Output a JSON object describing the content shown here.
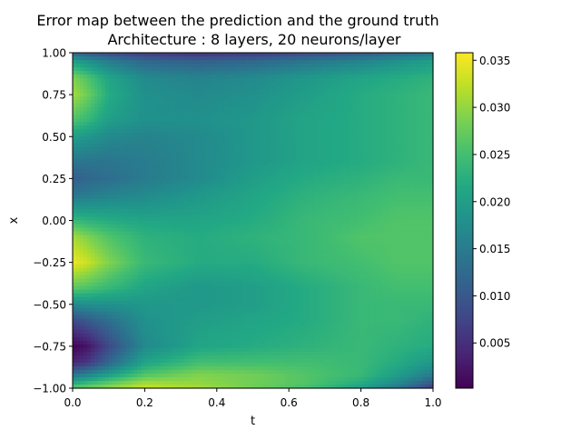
{
  "chart_data": {
    "type": "heatmap",
    "title_line1": "Error map between the prediction and the ground truth",
    "title_line2": "Architecture : 8 layers, 20 neurons/layer",
    "xlabel": "t",
    "ylabel": "x",
    "xlim": [
      0.0,
      1.0
    ],
    "ylim": [
      -1.0,
      1.0
    ],
    "xticks": [
      {
        "value": 0.0,
        "label": "0.0"
      },
      {
        "value": 0.2,
        "label": "0.2"
      },
      {
        "value": 0.4,
        "label": "0.4"
      },
      {
        "value": 0.6,
        "label": "0.6"
      },
      {
        "value": 0.8,
        "label": "0.8"
      },
      {
        "value": 1.0,
        "label": "1.0"
      }
    ],
    "yticks": [
      {
        "value": 1.0,
        "label": "1.00"
      },
      {
        "value": 0.75,
        "label": "0.75"
      },
      {
        "value": 0.5,
        "label": "0.50"
      },
      {
        "value": 0.25,
        "label": "0.25"
      },
      {
        "value": 0.0,
        "label": "0.00"
      },
      {
        "value": -0.25,
        "label": "−0.25"
      },
      {
        "value": -0.5,
        "label": "−0.50"
      },
      {
        "value": -0.75,
        "label": "−0.75"
      },
      {
        "value": -1.0,
        "label": "−1.00"
      }
    ],
    "colormap": "viridis",
    "colorbar": {
      "min": 0.0002,
      "max": 0.0358,
      "ticks": [
        {
          "value": 0.005,
          "label": "0.005"
        },
        {
          "value": 0.01,
          "label": "0.010"
        },
        {
          "value": 0.015,
          "label": "0.015"
        },
        {
          "value": 0.02,
          "label": "0.020"
        },
        {
          "value": 0.025,
          "label": "0.025"
        },
        {
          "value": 0.03,
          "label": "0.030"
        },
        {
          "value": 0.035,
          "label": "0.035"
        }
      ]
    },
    "x": [
      0.0,
      0.04,
      0.1,
      0.2,
      0.35,
      0.5,
      0.65,
      0.8,
      0.9,
      1.0
    ],
    "y": [
      1.0,
      0.95,
      0.85,
      0.75,
      0.6,
      0.5,
      0.35,
      0.25,
      0.15,
      0.0,
      -0.1,
      -0.25,
      -0.4,
      -0.5,
      -0.6,
      -0.75,
      -0.85,
      -0.92,
      -0.97,
      -1.0
    ],
    "z": [
      [
        0.012,
        0.01,
        0.008,
        0.006,
        0.005,
        0.006,
        0.008,
        0.01,
        0.012,
        0.014
      ],
      [
        0.02,
        0.018,
        0.015,
        0.012,
        0.011,
        0.012,
        0.014,
        0.016,
        0.018,
        0.02
      ],
      [
        0.029,
        0.026,
        0.021,
        0.017,
        0.016,
        0.017,
        0.019,
        0.021,
        0.022,
        0.023
      ],
      [
        0.031,
        0.028,
        0.022,
        0.018,
        0.017,
        0.018,
        0.02,
        0.022,
        0.023,
        0.024
      ],
      [
        0.026,
        0.024,
        0.02,
        0.018,
        0.018,
        0.019,
        0.021,
        0.022,
        0.023,
        0.024
      ],
      [
        0.02,
        0.019,
        0.017,
        0.016,
        0.017,
        0.019,
        0.021,
        0.022,
        0.023,
        0.024
      ],
      [
        0.014,
        0.014,
        0.014,
        0.015,
        0.017,
        0.019,
        0.021,
        0.022,
        0.023,
        0.024
      ],
      [
        0.011,
        0.012,
        0.013,
        0.015,
        0.017,
        0.02,
        0.022,
        0.023,
        0.024,
        0.024
      ],
      [
        0.014,
        0.015,
        0.016,
        0.017,
        0.019,
        0.021,
        0.023,
        0.024,
        0.025,
        0.025
      ],
      [
        0.024,
        0.023,
        0.022,
        0.021,
        0.021,
        0.022,
        0.024,
        0.025,
        0.026,
        0.026
      ],
      [
        0.031,
        0.029,
        0.026,
        0.023,
        0.022,
        0.023,
        0.024,
        0.026,
        0.026,
        0.026
      ],
      [
        0.035,
        0.033,
        0.029,
        0.024,
        0.022,
        0.022,
        0.024,
        0.025,
        0.026,
        0.026
      ],
      [
        0.027,
        0.026,
        0.024,
        0.021,
        0.019,
        0.02,
        0.022,
        0.024,
        0.025,
        0.025
      ],
      [
        0.017,
        0.018,
        0.018,
        0.019,
        0.019,
        0.02,
        0.022,
        0.024,
        0.024,
        0.024
      ],
      [
        0.008,
        0.01,
        0.013,
        0.018,
        0.02,
        0.021,
        0.022,
        0.024,
        0.024,
        0.023
      ],
      [
        0.0005,
        0.002,
        0.008,
        0.017,
        0.021,
        0.022,
        0.023,
        0.024,
        0.023,
        0.022
      ],
      [
        0.004,
        0.006,
        0.012,
        0.021,
        0.025,
        0.025,
        0.025,
        0.024,
        0.022,
        0.019
      ],
      [
        0.014,
        0.016,
        0.02,
        0.026,
        0.029,
        0.028,
        0.026,
        0.024,
        0.02,
        0.015
      ],
      [
        0.022,
        0.024,
        0.027,
        0.031,
        0.03,
        0.028,
        0.026,
        0.022,
        0.017,
        0.01
      ],
      [
        0.027,
        0.028,
        0.03,
        0.033,
        0.031,
        0.028,
        0.025,
        0.02,
        0.014,
        0.006
      ]
    ]
  }
}
